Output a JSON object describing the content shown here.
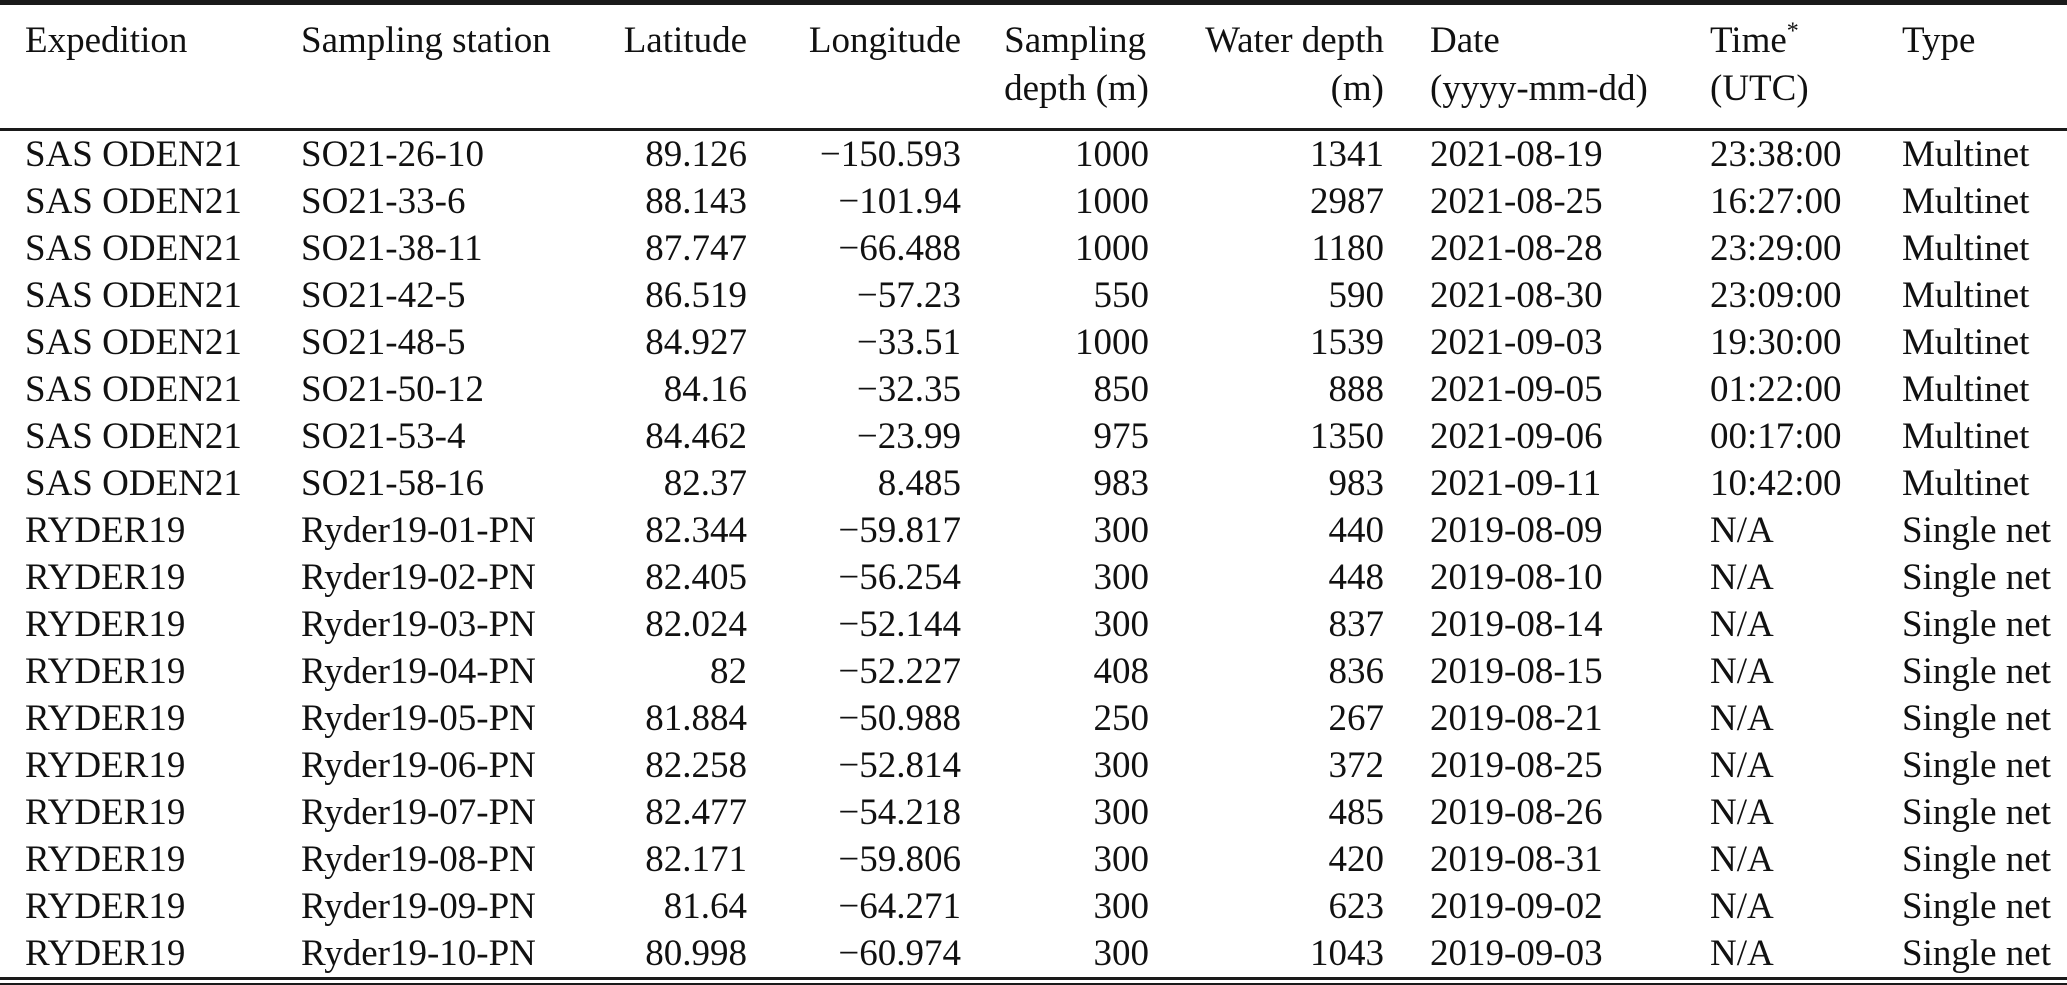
{
  "table": {
    "column_keys": [
      "expedition",
      "sampling-station",
      "latitude",
      "longitude",
      "sampling-depth",
      "water-depth",
      "date",
      "time",
      "type"
    ],
    "columns": [
      {
        "line1": "Expedition",
        "line2": ""
      },
      {
        "line1": "Sampling station",
        "line2": ""
      },
      {
        "line1": "Latitude",
        "line2": ""
      },
      {
        "line1": "Longitude",
        "line2": ""
      },
      {
        "line1": "Sampling",
        "line2": "depth (m)"
      },
      {
        "line1": "Water depth",
        "line2": "(m)"
      },
      {
        "line1": "Date",
        "line2": "(yyyy-mm-dd)"
      },
      {
        "line1": "Time",
        "sup": "*",
        "line2": "(UTC)"
      },
      {
        "line1": "Type",
        "line2": ""
      }
    ],
    "rows": [
      [
        "SAS ODEN21",
        "SO21-26-10",
        "89.126",
        "−150.593",
        "1000",
        "1341",
        "2021-08-19",
        "23:38:00",
        "Multinet"
      ],
      [
        "SAS ODEN21",
        "SO21-33-6",
        "88.143",
        "−101.94",
        "1000",
        "2987",
        "2021-08-25",
        "16:27:00",
        "Multinet"
      ],
      [
        "SAS ODEN21",
        "SO21-38-11",
        "87.747",
        "−66.488",
        "1000",
        "1180",
        "2021-08-28",
        "23:29:00",
        "Multinet"
      ],
      [
        "SAS ODEN21",
        "SO21-42-5",
        "86.519",
        "−57.23",
        "550",
        "590",
        "2021-08-30",
        "23:09:00",
        "Multinet"
      ],
      [
        "SAS ODEN21",
        "SO21-48-5",
        "84.927",
        "−33.51",
        "1000",
        "1539",
        "2021-09-03",
        "19:30:00",
        "Multinet"
      ],
      [
        "SAS ODEN21",
        "SO21-50-12",
        "84.16",
        "−32.35",
        "850",
        "888",
        "2021-09-05",
        "01:22:00",
        "Multinet"
      ],
      [
        "SAS ODEN21",
        "SO21-53-4",
        "84.462",
        "−23.99",
        "975",
        "1350",
        "2021-09-06",
        "00:17:00",
        "Multinet"
      ],
      [
        "SAS ODEN21",
        "SO21-58-16",
        "82.37",
        "8.485",
        "983",
        "983",
        "2021-09-11",
        "10:42:00",
        "Multinet"
      ],
      [
        "RYDER19",
        "Ryder19-01-PN",
        "82.344",
        "−59.817",
        "300",
        "440",
        "2019-08-09",
        "N/A",
        "Single net"
      ],
      [
        "RYDER19",
        "Ryder19-02-PN",
        "82.405",
        "−56.254",
        "300",
        "448",
        "2019-08-10",
        "N/A",
        "Single net"
      ],
      [
        "RYDER19",
        "Ryder19-03-PN",
        "82.024",
        "−52.144",
        "300",
        "837",
        "2019-08-14",
        "N/A",
        "Single net"
      ],
      [
        "RYDER19",
        "Ryder19-04-PN",
        "82",
        "−52.227",
        "408",
        "836",
        "2019-08-15",
        "N/A",
        "Single net"
      ],
      [
        "RYDER19",
        "Ryder19-05-PN",
        "81.884",
        "−50.988",
        "250",
        "267",
        "2019-08-21",
        "N/A",
        "Single net"
      ],
      [
        "RYDER19",
        "Ryder19-06-PN",
        "82.258",
        "−52.814",
        "300",
        "372",
        "2019-08-25",
        "N/A",
        "Single net"
      ],
      [
        "RYDER19",
        "Ryder19-07-PN",
        "82.477",
        "−54.218",
        "300",
        "485",
        "2019-08-26",
        "N/A",
        "Single net"
      ],
      [
        "RYDER19",
        "Ryder19-08-PN",
        "82.171",
        "−59.806",
        "300",
        "420",
        "2019-08-31",
        "N/A",
        "Single net"
      ],
      [
        "RYDER19",
        "Ryder19-09-PN",
        "81.64",
        "−64.271",
        "300",
        "623",
        "2019-09-02",
        "N/A",
        "Single net"
      ],
      [
        "RYDER19",
        "Ryder19-10-PN",
        "80.998",
        "−60.974",
        "300",
        "1043",
        "2019-09-03",
        "N/A",
        "Single net"
      ]
    ],
    "colors": {
      "rule": "#1a1a1a",
      "text": "#111111",
      "background": "#ffffff"
    }
  }
}
